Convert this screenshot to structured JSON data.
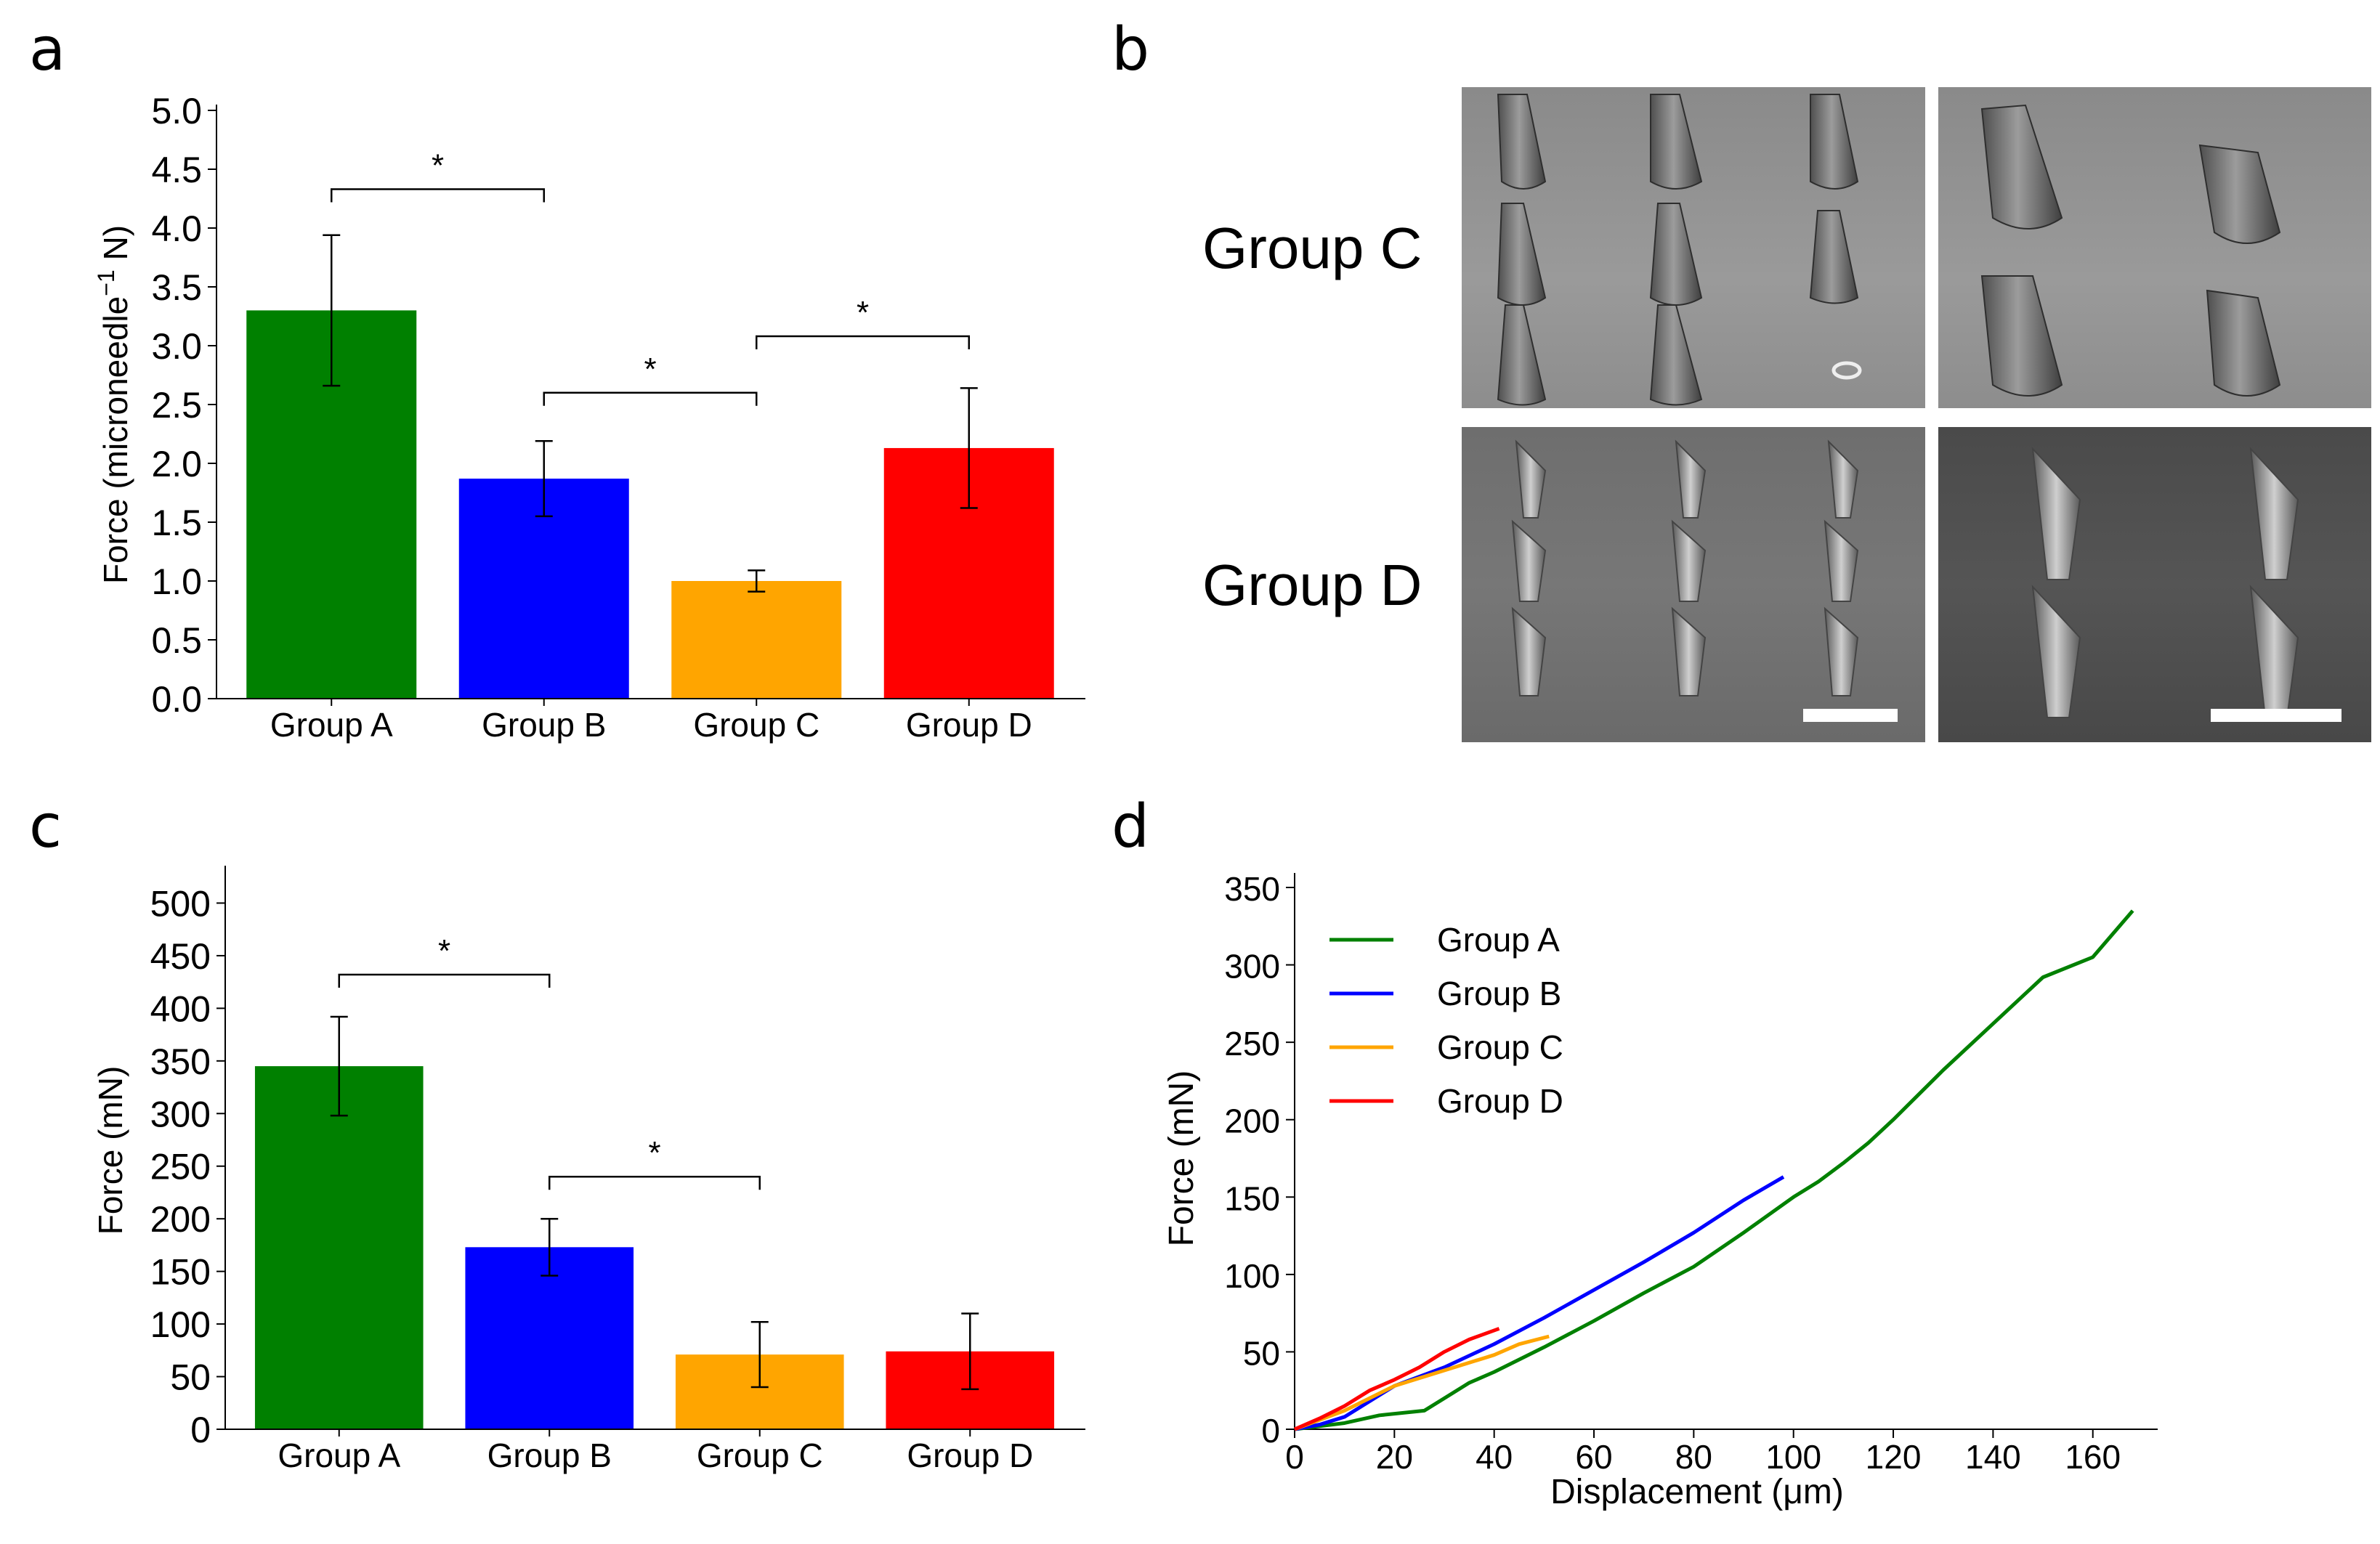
{
  "panel_letters": {
    "a": "a",
    "b": "b",
    "c": "c",
    "d": "d"
  },
  "sem_panel": {
    "row_labels": [
      "Group C",
      "Group D"
    ],
    "description_icons": [
      "cone-microneedle-icon",
      "pill-microneedle-icon"
    ]
  },
  "colors": {
    "group_a": "#008000",
    "group_b": "#0000ff",
    "group_c": "#ffa500",
    "group_d": "#ff0000"
  },
  "chart_data": [
    {
      "id": "a",
      "type": "bar",
      "categories": [
        "Group A",
        "Group B",
        "Group C",
        "Group D"
      ],
      "values": [
        3.3,
        1.87,
        1.0,
        2.13
      ],
      "errors": [
        0.64,
        0.32,
        0.09,
        0.51
      ],
      "colors": [
        "#008000",
        "#0000ff",
        "#ffa500",
        "#ff0000"
      ],
      "ylabel": "Force (microneedle",
      "ylabel_sup": "−1",
      "ylabel_tail": " N)",
      "ylim": [
        0,
        5.0
      ],
      "yticks": [
        "0.0",
        "0.5",
        "1.0",
        "1.5",
        "2.0",
        "2.5",
        "3.0",
        "3.5",
        "4.0",
        "4.5",
        "5.0"
      ],
      "significance": [
        {
          "from": 0,
          "to": 1,
          "y": 4.33,
          "label": "*"
        },
        {
          "from": 1,
          "to": 2,
          "y": 2.6,
          "label": "*"
        },
        {
          "from": 2,
          "to": 3,
          "y": 3.08,
          "label": "*"
        }
      ]
    },
    {
      "id": "c",
      "type": "bar",
      "categories": [
        "Group A",
        "Group B",
        "Group C",
        "Group D"
      ],
      "values": [
        345,
        173,
        71,
        74
      ],
      "errors": [
        47,
        27,
        31,
        36
      ],
      "colors": [
        "#008000",
        "#0000ff",
        "#ffa500",
        "#ff0000"
      ],
      "ylabel": "Force (mN)",
      "ylim": [
        0,
        530
      ],
      "yticks": [
        "0",
        "50",
        "100",
        "150",
        "200",
        "250",
        "300",
        "350",
        "400",
        "450",
        "500"
      ],
      "significance": [
        {
          "from": 0,
          "to": 1,
          "y": 432,
          "label": "*"
        },
        {
          "from": 1,
          "to": 2,
          "y": 240,
          "label": "*"
        }
      ]
    },
    {
      "id": "d",
      "type": "line",
      "xlabel": "Displacement (μm)",
      "ylabel": "Force (mN)",
      "xlim": [
        0,
        173
      ],
      "ylim": [
        0,
        350
      ],
      "xticks": [
        "0",
        "20",
        "40",
        "60",
        "80",
        "100",
        "120",
        "140",
        "160"
      ],
      "yticks": [
        "0",
        "50",
        "100",
        "150",
        "200",
        "250",
        "300",
        "350"
      ],
      "legend_position": "top-left",
      "series": [
        {
          "name": "Group A",
          "color": "#008000",
          "x": [
            0,
            5,
            10,
            17,
            26,
            30,
            35,
            40,
            50,
            60,
            70,
            80,
            90,
            100,
            105,
            110,
            115,
            120,
            130,
            140,
            150,
            160,
            168
          ],
          "y": [
            0,
            2,
            4,
            9,
            12,
            20,
            30,
            37,
            53,
            70,
            88,
            105,
            127,
            150,
            160,
            172,
            185,
            200,
            232,
            262,
            292,
            305,
            335
          ]
        },
        {
          "name": "Group B",
          "color": "#0000ff",
          "x": [
            0,
            5,
            10,
            15,
            20,
            30,
            40,
            50,
            60,
            70,
            80,
            90,
            98
          ],
          "y": [
            0,
            3,
            8,
            18,
            28,
            40,
            55,
            72,
            90,
            108,
            127,
            148,
            163
          ]
        },
        {
          "name": "Group C",
          "color": "#ffa500",
          "x": [
            0,
            5,
            10,
            15,
            20,
            30,
            40,
            45,
            51
          ],
          "y": [
            0,
            6,
            12,
            20,
            28,
            38,
            48,
            55,
            60
          ]
        },
        {
          "name": "Group D",
          "color": "#ff0000",
          "x": [
            0,
            5,
            10,
            15,
            20,
            25,
            30,
            35,
            41
          ],
          "y": [
            0,
            7,
            15,
            25,
            32,
            40,
            50,
            58,
            65
          ]
        }
      ]
    }
  ]
}
